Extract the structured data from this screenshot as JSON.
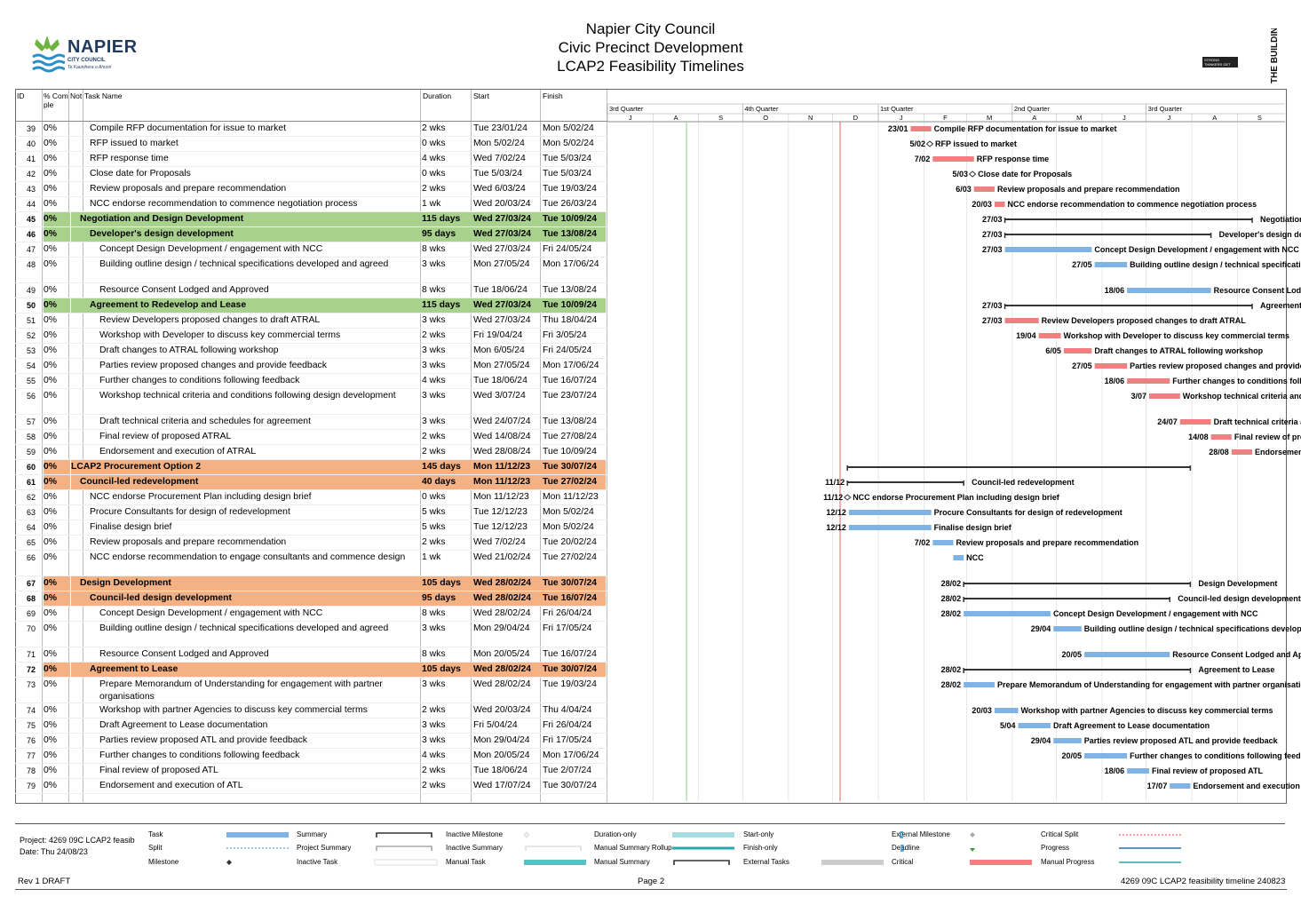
{
  "header": {
    "line1": "Napier City Council",
    "line2": "Civic Precinct Development",
    "line3": "LCAP2 Feasibility Timelines",
    "logo_left_word": "NAPIER",
    "logo_left_sub": "CITY COUNCIL",
    "logo_left_tag": "Te Kaunihera o Ahuriri",
    "logo_right_text": "THE BUILDING INTELLIGENCE GROUP",
    "logo_right_tag": "STRONG THINKERS GET RESULTS"
  },
  "columns": {
    "id": "ID",
    "pct": "% Comple",
    "notes": "Not",
    "name": "Task Name",
    "duration": "Duration",
    "start": "Start",
    "finish": "Finish"
  },
  "timescale": {
    "quarters": [
      "3rd Quarter",
      "4th Quarter",
      "1st Quarter",
      "2nd Quarter",
      "3rd Quarter"
    ],
    "months": [
      "J",
      "A",
      "S",
      "O",
      "N",
      "D",
      "J",
      "F",
      "M",
      "A",
      "M",
      "J",
      "J",
      "A",
      "S"
    ]
  },
  "tasks": [
    {
      "id": "39",
      "pct": "0%",
      "name": "Compile RFP documentation for issue to market",
      "duration": "2 wks",
      "start": "Tue 23/01/24",
      "finish": "Mon 5/02/24",
      "level": 3,
      "type": "task",
      "s": "2024-01-23",
      "f": "2024-02-05",
      "crit": true,
      "label_start": "23/01",
      "bar_text": "Compile RFP documentation for issue to market"
    },
    {
      "id": "40",
      "pct": "0%",
      "name": "RFP issued to market",
      "duration": "0 wks",
      "start": "Mon 5/02/24",
      "finish": "Mon 5/02/24",
      "level": 3,
      "type": "milestone",
      "s": "2024-02-05",
      "f": "2024-02-05",
      "crit": true,
      "label_start": "5/02",
      "bar_text": "RFP issued to market"
    },
    {
      "id": "41",
      "pct": "0%",
      "name": "RFP response time",
      "duration": "4 wks",
      "start": "Wed 7/02/24",
      "finish": "Tue 5/03/24",
      "level": 3,
      "type": "task",
      "s": "2024-02-07",
      "f": "2024-03-05",
      "crit": true,
      "label_start": "7/02",
      "bar_text": "RFP response time"
    },
    {
      "id": "42",
      "pct": "0%",
      "name": "Close date for Proposals",
      "duration": "0 wks",
      "start": "Tue 5/03/24",
      "finish": "Tue 5/03/24",
      "level": 3,
      "type": "milestone",
      "s": "2024-03-05",
      "f": "2024-03-05",
      "crit": true,
      "label_start": "5/03",
      "bar_text": "Close date for Proposals"
    },
    {
      "id": "43",
      "pct": "0%",
      "name": "Review proposals and prepare recommendation",
      "duration": "2 wks",
      "start": "Wed 6/03/24",
      "finish": "Tue 19/03/24",
      "level": 3,
      "type": "task",
      "s": "2024-03-06",
      "f": "2024-03-19",
      "crit": true,
      "label_start": "6/03",
      "bar_text": "Review proposals and prepare recommendation"
    },
    {
      "id": "44",
      "pct": "0%",
      "name": "NCC endorse recommendation to commence negotiation process",
      "duration": "1 wk",
      "start": "Wed 20/03/24",
      "finish": "Tue 26/03/24",
      "level": 3,
      "type": "task",
      "s": "2024-03-20",
      "f": "2024-03-26",
      "crit": true,
      "label_start": "20/03",
      "bar_text": "NCC endorse recommendation to commence negotiation process"
    },
    {
      "id": "45",
      "pct": "0%",
      "name": "Negotiation and Design Development",
      "duration": "115 days",
      "start": "Wed 27/03/24",
      "finish": "Tue 10/09/24",
      "level": 2,
      "type": "summary",
      "color": "green",
      "s": "2024-03-27",
      "f": "2024-09-10",
      "label_start": "27/03",
      "bar_text": "Negotiation and Design Development"
    },
    {
      "id": "46",
      "pct": "0%",
      "name": "Developer's design development",
      "duration": "95 days",
      "start": "Wed 27/03/24",
      "finish": "Tue 13/08/24",
      "level": 3,
      "type": "summary",
      "color": "green",
      "s": "2024-03-27",
      "f": "2024-08-13",
      "label_start": "27/03",
      "bar_text": "Developer's design development"
    },
    {
      "id": "47",
      "pct": "0%",
      "name": "Concept Design Development / engagement with NCC",
      "duration": "8 wks",
      "start": "Wed 27/03/24",
      "finish": "Fri 24/05/24",
      "level": 4,
      "type": "task",
      "s": "2024-03-27",
      "f": "2024-05-24",
      "crit": false,
      "label_start": "27/03",
      "bar_text": "Concept Design Development / engagement with NCC"
    },
    {
      "id": "48",
      "pct": "0%",
      "name": "Building outline design / technical specifications developed and agreed",
      "duration": "3 wks",
      "start": "Mon 27/05/24",
      "finish": "Mon 17/06/24",
      "level": 4,
      "type": "task",
      "s": "2024-05-27",
      "f": "2024-06-17",
      "crit": false,
      "label_start": "27/05",
      "bar_text": "Building outline design / technical specifications developed and agreed",
      "tall": true
    },
    {
      "id": "49",
      "pct": "0%",
      "name": "Resource Consent Lodged and Approved",
      "duration": "8 wks",
      "start": "Tue 18/06/24",
      "finish": "Tue 13/08/24",
      "level": 4,
      "type": "task",
      "s": "2024-06-18",
      "f": "2024-08-13",
      "crit": false,
      "label_start": "18/06",
      "bar_text": "Resource Consent Lodged and Approved"
    },
    {
      "id": "50",
      "pct": "0%",
      "name": "Agreement to Redevelop and Lease",
      "duration": "115 days",
      "start": "Wed 27/03/24",
      "finish": "Tue 10/09/24",
      "level": 3,
      "type": "summary",
      "color": "green",
      "s": "2024-03-27",
      "f": "2024-09-10",
      "label_start": "27/03",
      "bar_text": "Agreement to Redevelop and Lease"
    },
    {
      "id": "51",
      "pct": "0%",
      "name": "Review Developers proposed changes to draft ATRAL",
      "duration": "3 wks",
      "start": "Wed 27/03/24",
      "finish": "Thu 18/04/24",
      "level": 4,
      "type": "task",
      "s": "2024-03-27",
      "f": "2024-04-18",
      "crit": true,
      "label_start": "27/03",
      "bar_text": "Review Developers proposed changes to draft ATRAL"
    },
    {
      "id": "52",
      "pct": "0%",
      "name": "Workshop with Developer to discuss key commercial terms",
      "duration": "2 wks",
      "start": "Fri 19/04/24",
      "finish": "Fri 3/05/24",
      "level": 4,
      "type": "task",
      "s": "2024-04-19",
      "f": "2024-05-03",
      "crit": true,
      "label_start": "19/04",
      "bar_text": "Workshop with Developer to discuss key commercial terms"
    },
    {
      "id": "53",
      "pct": "0%",
      "name": "Draft changes to ATRAL following workshop",
      "duration": "3 wks",
      "start": "Mon 6/05/24",
      "finish": "Fri 24/05/24",
      "level": 4,
      "type": "task",
      "s": "2024-05-06",
      "f": "2024-05-24",
      "crit": true,
      "label_start": "6/05",
      "bar_text": "Draft changes to ATRAL following workshop"
    },
    {
      "id": "54",
      "pct": "0%",
      "name": "Parties review proposed changes and provide feedback",
      "duration": "3 wks",
      "start": "Mon 27/05/24",
      "finish": "Mon 17/06/24",
      "level": 4,
      "type": "task",
      "s": "2024-05-27",
      "f": "2024-06-17",
      "crit": true,
      "label_start": "27/05",
      "bar_text": "Parties review proposed changes and provide feedback"
    },
    {
      "id": "55",
      "pct": "0%",
      "name": "Further changes to conditions following feedback",
      "duration": "4 wks",
      "start": "Tue 18/06/24",
      "finish": "Tue 16/07/24",
      "level": 4,
      "type": "task",
      "s": "2024-06-18",
      "f": "2024-07-16",
      "crit": true,
      "label_start": "18/06",
      "bar_text": "Further changes to conditions following feedback"
    },
    {
      "id": "56",
      "pct": "0%",
      "name": "Workshop technical criteria and conditions following design development",
      "duration": "3 wks",
      "start": "Wed 3/07/24",
      "finish": "Tue 23/07/24",
      "level": 4,
      "type": "task",
      "s": "2024-07-03",
      "f": "2024-07-23",
      "crit": true,
      "label_start": "3/07",
      "bar_text": "Workshop technical criteria and conditions following design development",
      "tall": true
    },
    {
      "id": "57",
      "pct": "0%",
      "name": "Draft technical criteria and schedules for agreement",
      "duration": "3 wks",
      "start": "Wed 24/07/24",
      "finish": "Tue 13/08/24",
      "level": 4,
      "type": "task",
      "s": "2024-07-24",
      "f": "2024-08-13",
      "crit": true,
      "label_start": "24/07",
      "bar_text": "Draft technical criteria and schedules for agreement"
    },
    {
      "id": "58",
      "pct": "0%",
      "name": "Final review of proposed ATRAL",
      "duration": "2 wks",
      "start": "Wed 14/08/24",
      "finish": "Tue 27/08/24",
      "level": 4,
      "type": "task",
      "s": "2024-08-14",
      "f": "2024-08-27",
      "crit": true,
      "label_start": "14/08",
      "bar_text": "Final review of proposed ATRAL"
    },
    {
      "id": "59",
      "pct": "0%",
      "name": "Endorsement and execution of ATRAL",
      "duration": "2 wks",
      "start": "Wed 28/08/24",
      "finish": "Tue 10/09/24",
      "level": 4,
      "type": "task",
      "s": "2024-08-28",
      "f": "2024-09-10",
      "crit": true,
      "label_start": "28/08",
      "bar_text": "Endorsement and execution of ATRAL"
    },
    {
      "id": "60",
      "pct": "0%",
      "name": "LCAP2 Procurement Option 2",
      "duration": "145 days",
      "start": "Mon 11/12/23",
      "finish": "Tue 30/07/24",
      "level": 1,
      "type": "summary",
      "color": "orange",
      "s": "2023-12-11",
      "f": "2024-07-30",
      "label_start": "",
      "bar_text": ""
    },
    {
      "id": "61",
      "pct": "0%",
      "name": "Council-led redevelopment",
      "duration": "40 days",
      "start": "Mon 11/12/23",
      "finish": "Tue 27/02/24",
      "level": 2,
      "type": "summary",
      "color": "orange",
      "s": "2023-12-11",
      "f": "2024-02-27",
      "label_start": "11/12",
      "bar_text": "Council-led redevelopment"
    },
    {
      "id": "62",
      "pct": "0%",
      "name": "NCC endorse Procurement Plan including design brief",
      "duration": "0 wks",
      "start": "Mon 11/12/23",
      "finish": "Mon 11/12/23",
      "level": 3,
      "type": "milestone",
      "s": "2023-12-11",
      "f": "2023-12-11",
      "crit": false,
      "label_start": "11/12",
      "bar_text": "NCC endorse Procurement Plan including design brief"
    },
    {
      "id": "63",
      "pct": "0%",
      "name": "Procure Consultants for design of redevelopment",
      "duration": "5 wks",
      "start": "Tue 12/12/23",
      "finish": "Mon 5/02/24",
      "level": 3,
      "type": "task",
      "s": "2023-12-12",
      "f": "2024-02-05",
      "crit": false,
      "label_start": "12/12",
      "bar_text": "Procure Consultants for design of redevelopment"
    },
    {
      "id": "64",
      "pct": "0%",
      "name": "Finalise design brief",
      "duration": "5 wks",
      "start": "Tue 12/12/23",
      "finish": "Mon 5/02/24",
      "level": 3,
      "type": "task",
      "s": "2023-12-12",
      "f": "2024-02-05",
      "crit": false,
      "label_start": "12/12",
      "bar_text": "Finalise design brief"
    },
    {
      "id": "65",
      "pct": "0%",
      "name": "Review proposals and prepare recommendation",
      "duration": "2 wks",
      "start": "Wed 7/02/24",
      "finish": "Tue 20/02/24",
      "level": 3,
      "type": "task",
      "s": "2024-02-07",
      "f": "2024-02-20",
      "crit": false,
      "label_start": "7/02",
      "bar_text": "Review proposals and prepare recommendation"
    },
    {
      "id": "66",
      "pct": "0%",
      "name": "NCC endorse recommendation to engage consultants and commence design",
      "duration": "1 wk",
      "start": "Wed 21/02/24",
      "finish": "Tue 27/02/24",
      "level": 3,
      "type": "task",
      "s": "2024-02-21",
      "f": "2024-02-27",
      "crit": false,
      "label_start": "",
      "bar_text": "NCC",
      "tall": true
    },
    {
      "id": "67",
      "pct": "0%",
      "name": "Design Development",
      "duration": "105 days",
      "start": "Wed 28/02/24",
      "finish": "Tue 30/07/24",
      "level": 2,
      "type": "summary",
      "color": "orange",
      "s": "2024-02-28",
      "f": "2024-07-30",
      "label_start": "28/02",
      "bar_text": "Design Development"
    },
    {
      "id": "68",
      "pct": "0%",
      "name": "Council-led design development",
      "duration": "95 days",
      "start": "Wed 28/02/24",
      "finish": "Tue 16/07/24",
      "level": 3,
      "type": "summary",
      "color": "orange",
      "s": "2024-02-28",
      "f": "2024-07-16",
      "label_start": "28/02",
      "bar_text": "Council-led design development"
    },
    {
      "id": "69",
      "pct": "0%",
      "name": "Concept Design Development / engagement with NCC",
      "duration": "8 wks",
      "start": "Wed 28/02/24",
      "finish": "Fri 26/04/24",
      "level": 4,
      "type": "task",
      "s": "2024-02-28",
      "f": "2024-04-26",
      "crit": false,
      "label_start": "28/02",
      "bar_text": "Concept Design Development / engagement with NCC"
    },
    {
      "id": "70",
      "pct": "0%",
      "name": "Building outline design / technical specifications developed and agreed",
      "duration": "3 wks",
      "start": "Mon 29/04/24",
      "finish": "Fri 17/05/24",
      "level": 4,
      "type": "task",
      "s": "2024-04-29",
      "f": "2024-05-17",
      "crit": false,
      "label_start": "29/04",
      "bar_text": "Building outline design / technical specifications developed and agreed",
      "tall": true
    },
    {
      "id": "71",
      "pct": "0%",
      "name": "Resource Consent Lodged and Approved",
      "duration": "8 wks",
      "start": "Mon 20/05/24",
      "finish": "Tue 16/07/24",
      "level": 4,
      "type": "task",
      "s": "2024-05-20",
      "f": "2024-07-16",
      "crit": false,
      "label_start": "20/05",
      "bar_text": "Resource Consent Lodged and Approved"
    },
    {
      "id": "72",
      "pct": "0%",
      "name": "Agreement to Lease",
      "duration": "105 days",
      "start": "Wed 28/02/24",
      "finish": "Tue 30/07/24",
      "level": 3,
      "type": "summary",
      "color": "orange",
      "s": "2024-02-28",
      "f": "2024-07-30",
      "label_start": "28/02",
      "bar_text": "Agreement to Lease"
    },
    {
      "id": "73",
      "pct": "0%",
      "name": "Prepare Memorandum of Understanding for engagement with partner organisations",
      "duration": "3 wks",
      "start": "Wed 28/02/24",
      "finish": "Tue 19/03/24",
      "level": 4,
      "type": "task",
      "s": "2024-02-28",
      "f": "2024-03-19",
      "crit": false,
      "label_start": "28/02",
      "bar_text": "Prepare Memorandum of Understanding for engagement with partner organisations",
      "tall": true
    },
    {
      "id": "74",
      "pct": "0%",
      "name": "Workshop with partner Agencies to discuss key commercial terms",
      "duration": "2 wks",
      "start": "Wed 20/03/24",
      "finish": "Thu 4/04/24",
      "level": 4,
      "type": "task",
      "s": "2024-03-20",
      "f": "2024-04-04",
      "crit": false,
      "label_start": "20/03",
      "bar_text": "Workshop with partner Agencies to discuss key commercial terms"
    },
    {
      "id": "75",
      "pct": "0%",
      "name": "Draft Agreement to Lease documentation",
      "duration": "3 wks",
      "start": "Fri 5/04/24",
      "finish": "Fri 26/04/24",
      "level": 4,
      "type": "task",
      "s": "2024-04-05",
      "f": "2024-04-26",
      "crit": false,
      "label_start": "5/04",
      "bar_text": "Draft Agreement to Lease documentation"
    },
    {
      "id": "76",
      "pct": "0%",
      "name": "Parties review proposed ATL and provide feedback",
      "duration": "3 wks",
      "start": "Mon 29/04/24",
      "finish": "Fri 17/05/24",
      "level": 4,
      "type": "task",
      "s": "2024-04-29",
      "f": "2024-05-17",
      "crit": false,
      "label_start": "29/04",
      "bar_text": "Parties review proposed ATL and provide feedback"
    },
    {
      "id": "77",
      "pct": "0%",
      "name": "Further changes to conditions following feedback",
      "duration": "4 wks",
      "start": "Mon 20/05/24",
      "finish": "Mon 17/06/24",
      "level": 4,
      "type": "task",
      "s": "2024-05-20",
      "f": "2024-06-17",
      "crit": false,
      "label_start": "20/05",
      "bar_text": "Further changes to conditions following feedback"
    },
    {
      "id": "78",
      "pct": "0%",
      "name": "Final review of proposed ATL",
      "duration": "2 wks",
      "start": "Tue 18/06/24",
      "finish": "Tue 2/07/24",
      "level": 4,
      "type": "task",
      "s": "2024-06-18",
      "f": "2024-07-02",
      "crit": false,
      "label_start": "18/06",
      "bar_text": "Final review of proposed ATL"
    },
    {
      "id": "79",
      "pct": "0%",
      "name": "Endorsement and execution of ATL",
      "duration": "2 wks",
      "start": "Wed 17/07/24",
      "finish": "Tue 30/07/24",
      "level": 4,
      "type": "task",
      "s": "2024-07-17",
      "f": "2024-07-30",
      "crit": false,
      "label_start": "17/07",
      "bar_text": "Endorsement and execution of ATL"
    }
  ],
  "legend": {
    "project": "Project: 4269 09C LCAP2 feasib",
    "date": "Date: Thu 24/08/23",
    "items": [
      {
        "label": "Task",
        "sym": "task"
      },
      {
        "label": "Split",
        "sym": "split"
      },
      {
        "label": "Milestone",
        "sym": "milestone"
      },
      {
        "label": "Summary",
        "sym": "summary"
      },
      {
        "label": "Project Summary",
        "sym": "projsum"
      },
      {
        "label": "Inactive Task",
        "sym": "inactive"
      },
      {
        "label": "Inactive Milestone",
        "sym": "inmile"
      },
      {
        "label": "Inactive Summary",
        "sym": "insum"
      },
      {
        "label": "Manual Task",
        "sym": "manual"
      },
      {
        "label": "Duration-only",
        "sym": "duronly"
      },
      {
        "label": "Manual Summary Rollup",
        "sym": "msr"
      },
      {
        "label": "Manual Summary",
        "sym": "msum"
      },
      {
        "label": "Start-only",
        "sym": "startonly"
      },
      {
        "label": "Finish-only",
        "sym": "finonly"
      },
      {
        "label": "External Tasks",
        "sym": "ext"
      },
      {
        "label": "External Milestone",
        "sym": "extmile"
      },
      {
        "label": "Deadline",
        "sym": "deadline"
      },
      {
        "label": "Critical",
        "sym": "critical"
      },
      {
        "label": "Critical Split",
        "sym": "critsplit"
      },
      {
        "label": "Progress",
        "sym": "progress"
      },
      {
        "label": "Manual Progress",
        "sym": "mprogress"
      }
    ],
    "colors": {
      "task": "#7fb3e6",
      "critical": "#f08080",
      "green": "#a9d18e",
      "orange": "#f4b183",
      "deadline": "#2e9e3e"
    }
  },
  "footer": {
    "left": "Rev 1 DRAFT",
    "center": "Page 2",
    "right": "4269 09C LCAP2 feasibility timeline 240823"
  }
}
